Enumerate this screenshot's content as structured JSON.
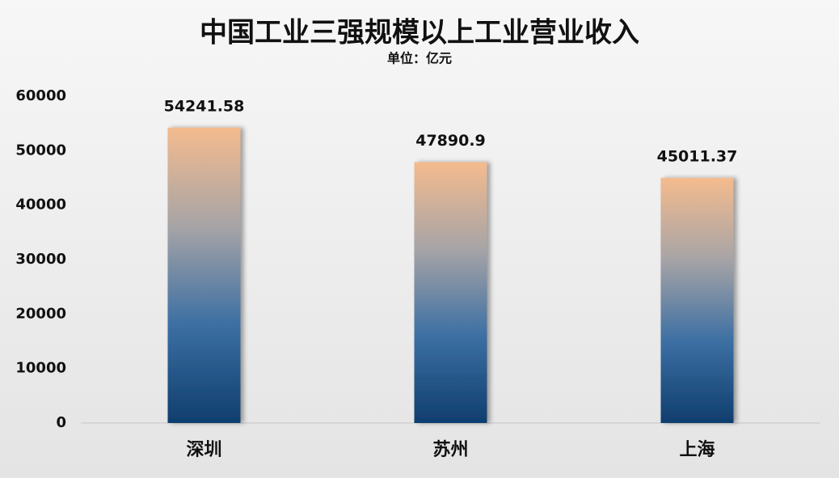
{
  "chart_data": {
    "type": "bar",
    "title": "中国工业三强规模以上工业营业收入",
    "subtitle": "单位：亿元",
    "categories": [
      "深圳",
      "苏州",
      "上海"
    ],
    "values": [
      54241.58,
      47890.9,
      45011.37
    ],
    "gradient": [
      "#f4bb8e",
      "#a7a4a6",
      "#3c6fa3",
      "#0f3e6e"
    ],
    "ylim": [
      0,
      60000
    ],
    "yticks": [
      0,
      10000,
      20000,
      30000,
      40000,
      50000,
      60000
    ],
    "grid": false
  }
}
